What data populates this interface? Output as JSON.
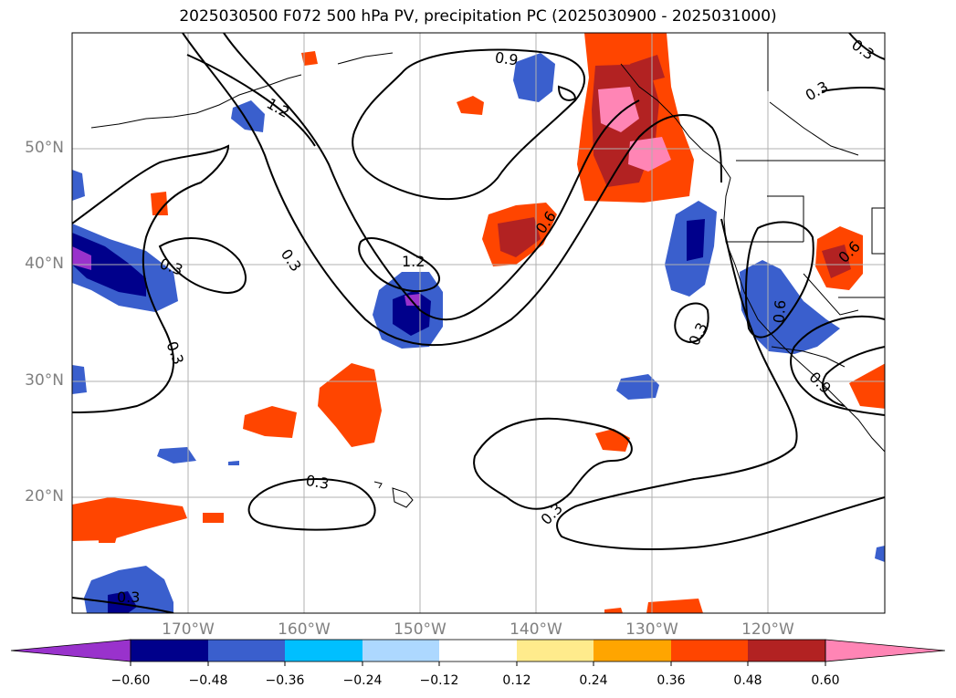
{
  "title": "2025030500 F072 500 hPa PV, precipitation PC (2025030900 - 2025031000)",
  "map": {
    "lat_labels": [
      "50°N",
      "40°N",
      "30°N",
      "20°N"
    ],
    "lon_labels": [
      "170°W",
      "160°W",
      "150°W",
      "140°W",
      "130°W",
      "120°W"
    ],
    "contour_labels": [
      "0.9",
      "1.2",
      "0.3",
      "0.3",
      "0.3",
      "1.2",
      "0.6",
      "0.3",
      "0.6",
      "0.3",
      "0.3",
      "0.9",
      "0.3",
      "0.3",
      "0.3",
      "0.6"
    ],
    "grid": true
  },
  "colorbar": {
    "ticks": [
      "−0.60",
      "−0.48",
      "−0.36",
      "−0.24",
      "−0.12",
      "0.12",
      "0.24",
      "0.36",
      "0.48",
      "0.60"
    ],
    "colors": [
      "#9932CC",
      "#00008B",
      "#3A5FCD",
      "#00BFFF",
      "#ADD8FF",
      "#FFFFFF",
      "#FFEB8C",
      "#FFA500",
      "#FF4500",
      "#B22222",
      "#FF85B5"
    ]
  }
}
